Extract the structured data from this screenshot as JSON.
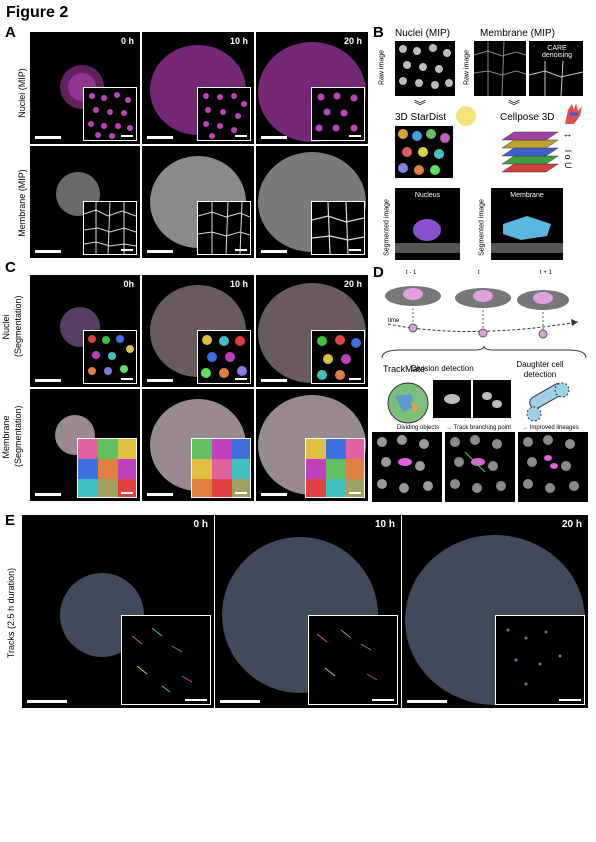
{
  "figure_title": "Figure 2",
  "panels": {
    "A": {
      "label": "A",
      "times": [
        "0 h",
        "10 h",
        "20 h"
      ],
      "rows": [
        "Nuclei (MIP)",
        "Membrane (MIP)"
      ]
    },
    "B": {
      "label": "B",
      "nuclei_title": "Nuclei (MIP)",
      "membrane_title": "Membrane (MIP)",
      "raw_image": "Raw image",
      "care": "CARE denoising",
      "stardist": "3D StarDist",
      "cellpose": "Cellpose 3D",
      "segmented_image": "Segmented image",
      "nucleus": "Nucleus",
      "membrane": "Membrane"
    },
    "C": {
      "label": "C",
      "times": [
        "0h",
        "10 h",
        "20 h"
      ],
      "rows": [
        "Nuclei",
        "(Segmentation)",
        "Membrane",
        "(Segmentation)"
      ]
    },
    "D": {
      "label": "D",
      "frames": [
        "t - 1",
        "t",
        "t + 1"
      ],
      "time": "time",
      "trackmate": "TrackMate",
      "division_detection": "Division detection",
      "daughter_cell": "Daughter cell",
      "detection": "detection",
      "dividing_objects": "Dividing objects",
      "track_branching": "→ Track branching point",
      "improved_lineages": "→ Improved lineages"
    },
    "E": {
      "label": "E",
      "times": [
        "0 h",
        "10 h",
        "20 h"
      ],
      "row": "Tracks (2.5 h duration)"
    }
  },
  "colors": {
    "nuclei": "#c040c0",
    "membrane": "#d8d8d8",
    "background": "#000000",
    "nucleus_3d": "#8a4fd0",
    "membrane_3d": "#5ab8e0"
  }
}
